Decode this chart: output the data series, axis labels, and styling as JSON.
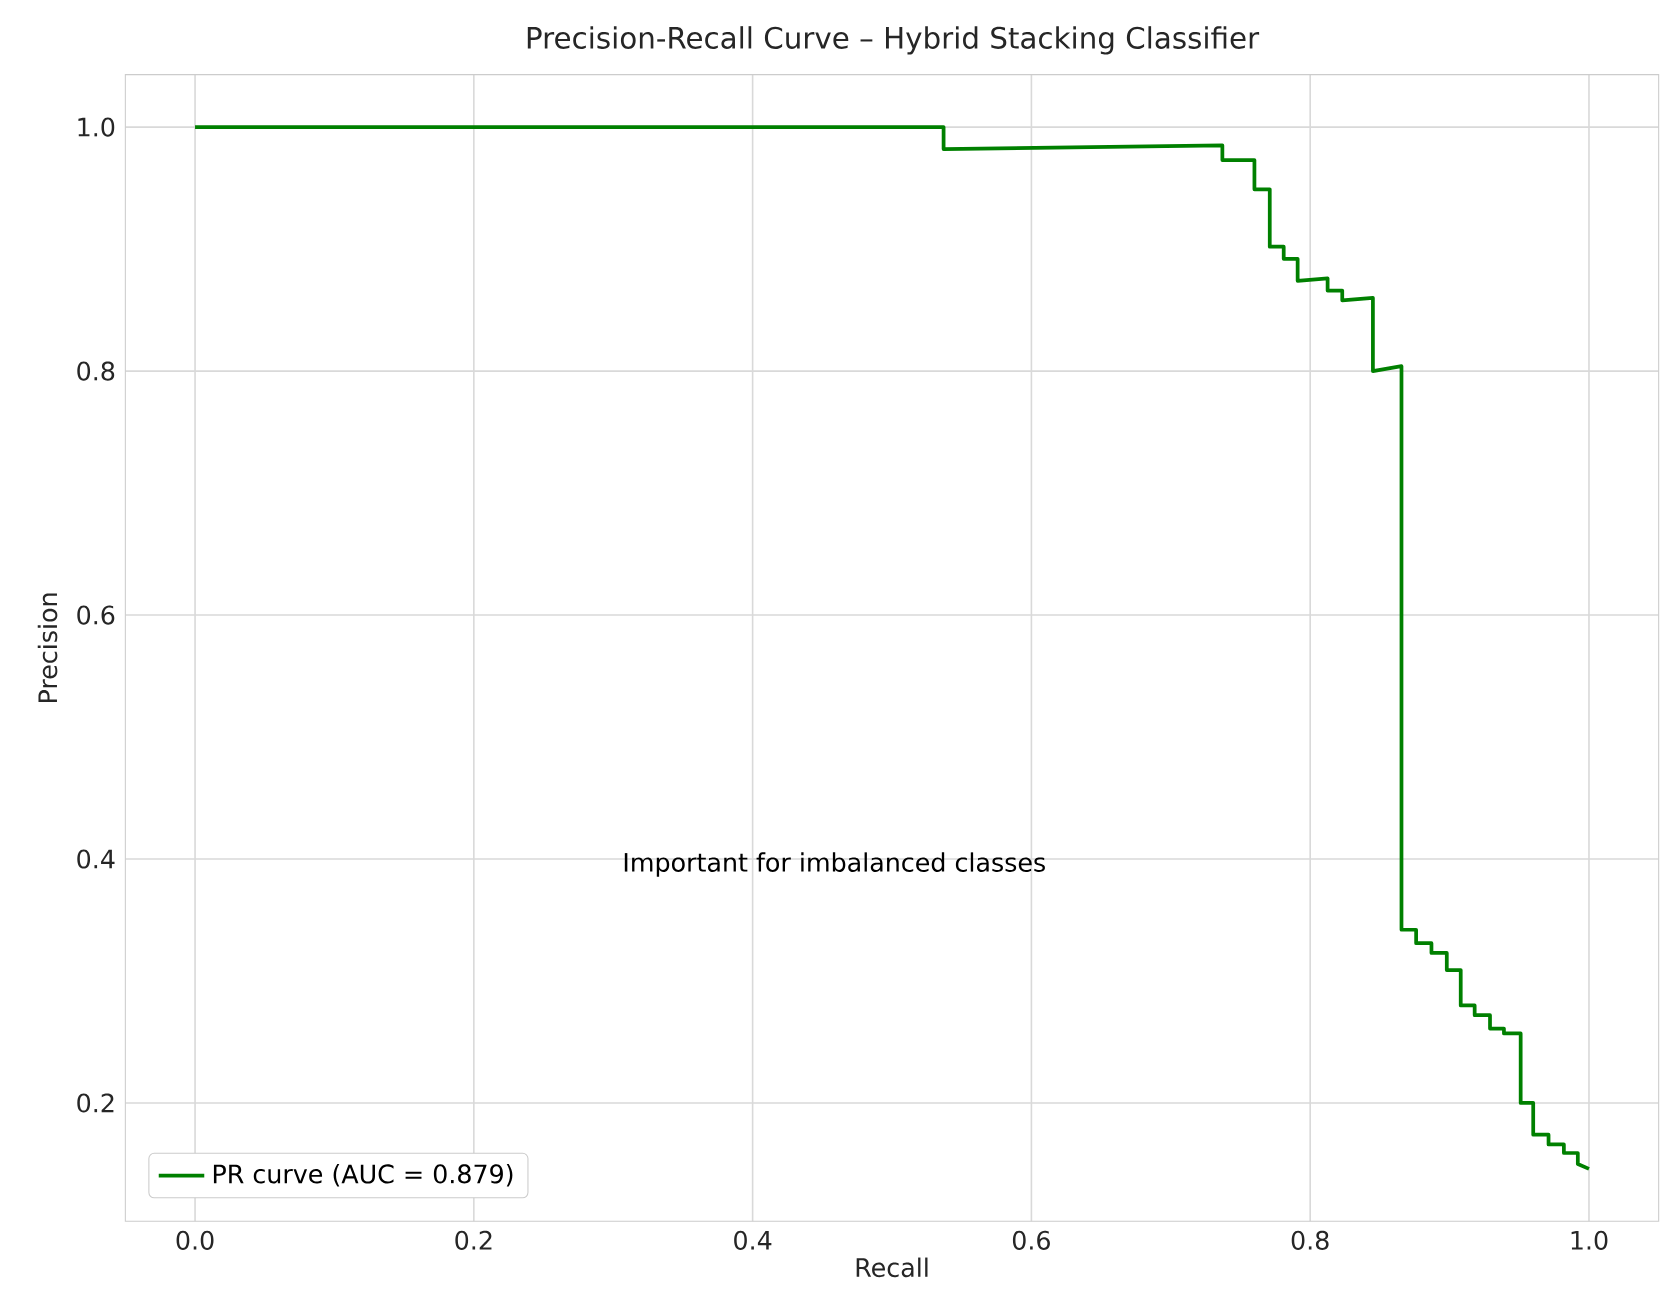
{
  "chart_data": {
    "type": "line",
    "title": "Precision-Recall Curve – Hybrid Stacking Classifier",
    "xlabel": "Recall",
    "ylabel": "Precision",
    "annotations": [
      "Important for imbalanced classes"
    ],
    "xlim": [
      -0.05,
      1.05
    ],
    "ylim": [
      0.103,
      1.043
    ],
    "xticks": [
      {
        "value": 0,
        "label": "0.0"
      },
      {
        "value": 0.2,
        "label": "0.2"
      },
      {
        "value": 0.4,
        "label": "0.4"
      },
      {
        "value": 0.6,
        "label": "0.6"
      },
      {
        "value": 0.8,
        "label": "0.8"
      },
      {
        "value": 1,
        "label": "1.0"
      }
    ],
    "yticks": [
      {
        "value": 0.2,
        "label": "0.2"
      },
      {
        "value": 0.4,
        "label": "0.4"
      },
      {
        "value": 0.6,
        "label": "0.6"
      },
      {
        "value": 0.8,
        "label": "0.8"
      },
      {
        "value": 1,
        "label": "1.0"
      }
    ],
    "grid": true,
    "legend": "bottom left",
    "marker": "none",
    "line_style": "solid",
    "series": [
      {
        "name": "PR curve (AUC = 0.879)",
        "color": "#008000",
        "x": [
          0,
          0.537,
          0.537,
          0.737,
          0.737,
          0.76,
          0.76,
          0.771,
          0.771,
          0.781,
          0.781,
          0.791,
          0.791,
          0.8125,
          0.8125,
          0.823,
          0.823,
          0.845,
          0.845,
          0.8655,
          0.8655,
          0.876,
          0.876,
          0.887,
          0.887,
          0.898,
          0.898,
          0.908,
          0.908,
          0.918,
          0.918,
          0.929,
          0.929,
          0.939,
          0.939,
          0.951,
          0.951,
          0.96,
          0.96,
          0.971,
          0.971,
          0.982,
          0.982,
          0.992,
          0.992,
          1.0
        ],
        "values": [
          1.0,
          1.0,
          0.982,
          0.985,
          0.973,
          0.973,
          0.949,
          0.949,
          0.902,
          0.902,
          0.892,
          0.892,
          0.874,
          0.876,
          0.866,
          0.866,
          0.858,
          0.86,
          0.8,
          0.804,
          0.342,
          0.342,
          0.331,
          0.331,
          0.323,
          0.323,
          0.309,
          0.309,
          0.28,
          0.28,
          0.272,
          0.272,
          0.261,
          0.261,
          0.257,
          0.257,
          0.2,
          0.2,
          0.174,
          0.174,
          0.166,
          0.166,
          0.159,
          0.159,
          0.15,
          0.146
        ]
      }
    ]
  }
}
